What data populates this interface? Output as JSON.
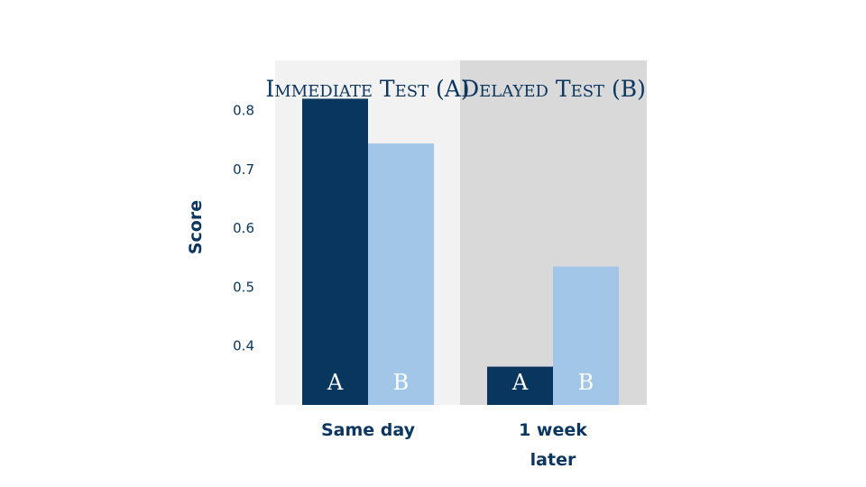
{
  "chart_data": {
    "type": "bar",
    "ylabel": "Score",
    "ylim": [
      0.3,
      0.885
    ],
    "yticks": [
      "0.4",
      "0.5",
      "0.6",
      "0.7",
      "0.8"
    ],
    "colors": {
      "series_A": "#08365f",
      "series_B": "#a2c6e8",
      "panel_immediate": "#f2f2f2",
      "panel_delayed": "#d9d9d9",
      "text": "#0b3660"
    },
    "panels": [
      {
        "title": "Immediate Test (A)",
        "category": "Same day",
        "bars": [
          {
            "series": "A",
            "label": "A",
            "value": 0.82
          },
          {
            "series": "B",
            "label": "B",
            "value": 0.744
          }
        ]
      },
      {
        "title": "Delayed Test (B)",
        "category": "1 week later",
        "bars": [
          {
            "series": "A",
            "label": "A",
            "value": 0.365
          },
          {
            "series": "B",
            "label": "B",
            "value": 0.535
          }
        ]
      }
    ]
  }
}
